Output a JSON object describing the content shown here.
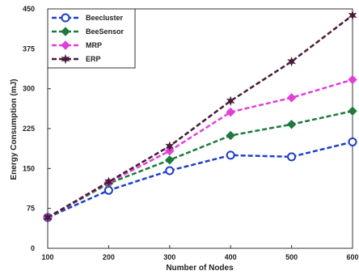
{
  "chart_data": {
    "type": "line",
    "xlabel": "Number of Nodes",
    "ylabel": "Energy Consumption (mJ)",
    "x": [
      100,
      200,
      300,
      400,
      500,
      600
    ],
    "xlim": [
      100,
      600
    ],
    "ylim": [
      0,
      450
    ],
    "xticks": [
      "100",
      "200",
      "300",
      "400",
      "500",
      "600"
    ],
    "yticks": [
      "0",
      "75",
      "150",
      "225",
      "300",
      "375",
      "450"
    ],
    "grid": false,
    "legend_position": "top-left",
    "series": [
      {
        "name": "Beecluster",
        "values": [
          58,
          109,
          146,
          175,
          172,
          200
        ],
        "color": "#1f3fc8",
        "marker": "circle"
      },
      {
        "name": "BeeSensor",
        "values": [
          58,
          122,
          166,
          212,
          233,
          258
        ],
        "color": "#1e7a3c",
        "marker": "diamond"
      },
      {
        "name": "MRP",
        "values": [
          58,
          124,
          183,
          256,
          283,
          317
        ],
        "color": "#e040d8",
        "marker": "diamond"
      },
      {
        "name": "ERP",
        "values": [
          58,
          125,
          192,
          277,
          351,
          438
        ],
        "color": "#4a1a3a",
        "marker": "star"
      }
    ]
  }
}
